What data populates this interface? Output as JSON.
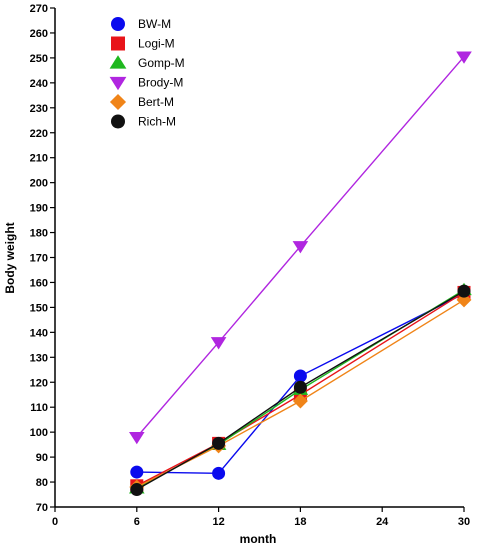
{
  "chart_data": {
    "type": "line",
    "title": "",
    "xlabel": "month",
    "ylabel": "Body weight",
    "x": [
      6,
      12,
      18,
      30
    ],
    "xlim": [
      0,
      30
    ],
    "ylim": [
      70,
      270
    ],
    "xticks": [
      0,
      6,
      12,
      18,
      24,
      30
    ],
    "yticks": [
      70,
      80,
      90,
      100,
      110,
      120,
      130,
      140,
      150,
      160,
      170,
      180,
      190,
      200,
      210,
      220,
      230,
      240,
      250,
      260,
      270
    ],
    "grid": false,
    "legend_position": "top-left",
    "series": [
      {
        "name": "BW-M",
        "values": [
          84,
          83.5,
          122.5,
          155.5
        ],
        "color": "#0a0aee",
        "marker": "circle"
      },
      {
        "name": "Logi-M",
        "values": [
          78.5,
          95.5,
          115,
          156
        ],
        "color": "#e8141a",
        "marker": "square"
      },
      {
        "name": "Gomp-M",
        "values": [
          77.5,
          95,
          117,
          157
        ],
        "color": "#1fb81f",
        "marker": "triangle-up"
      },
      {
        "name": "Brody-M",
        "values": [
          98,
          136,
          174.5,
          250.5
        ],
        "color": "#b026e0",
        "marker": "triangle-down"
      },
      {
        "name": "Bert-M",
        "values": [
          78,
          94.5,
          112.5,
          153
        ],
        "color": "#f08418",
        "marker": "diamond"
      },
      {
        "name": "Rich-M",
        "values": [
          77,
          95.5,
          118,
          156.5
        ],
        "color": "#111111",
        "marker": "circle"
      }
    ]
  }
}
